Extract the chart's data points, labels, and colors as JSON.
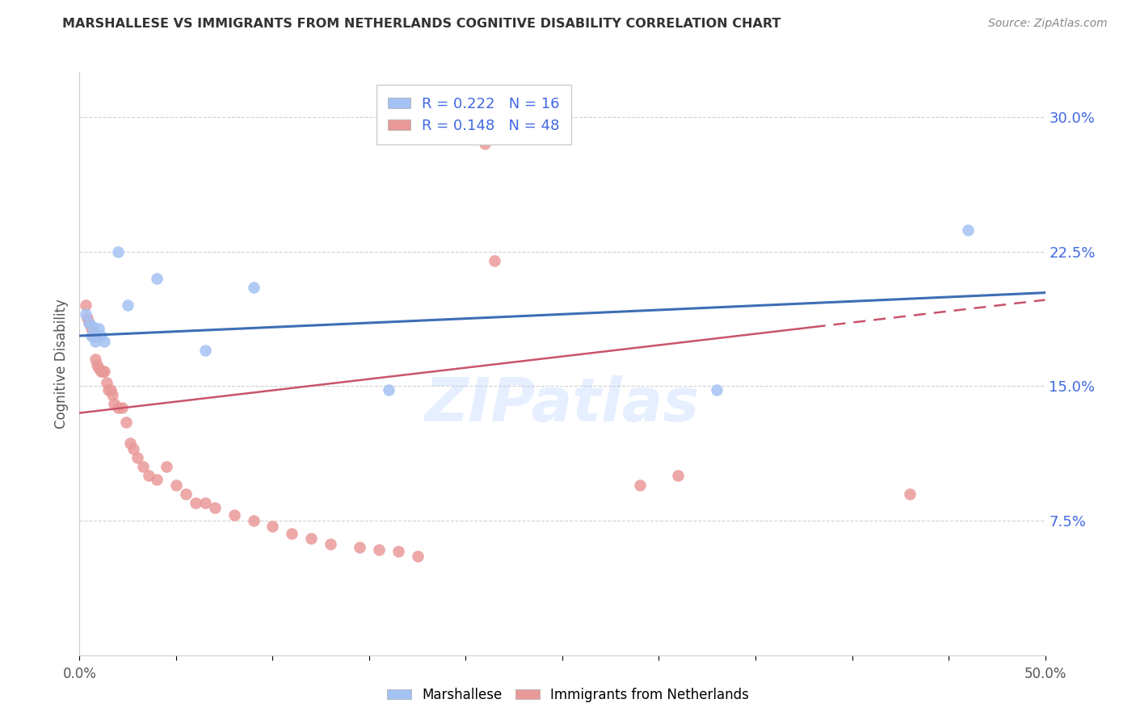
{
  "title": "MARSHALLESE VS IMMIGRANTS FROM NETHERLANDS COGNITIVE DISABILITY CORRELATION CHART",
  "source": "Source: ZipAtlas.com",
  "ylabel": "Cognitive Disability",
  "xlim": [
    0.0,
    0.5
  ],
  "ylim": [
    0.0,
    0.325
  ],
  "yticks": [
    0.075,
    0.15,
    0.225,
    0.3
  ],
  "ytick_labels": [
    "7.5%",
    "15.0%",
    "22.5%",
    "30.0%"
  ],
  "xticks": [
    0.0,
    0.05,
    0.1,
    0.15,
    0.2,
    0.25,
    0.3,
    0.35,
    0.4,
    0.45,
    0.5
  ],
  "xtick_labels": [
    "0.0%",
    "",
    "",
    "",
    "",
    "",
    "",
    "",
    "",
    "",
    "50.0%"
  ],
  "blue_color": "#a4c2f4",
  "pink_color": "#ea9999",
  "blue_line_color": "#3d6eb5",
  "pink_line_color": "#c9546c",
  "legend_R1": "R = 0.222",
  "legend_N1": "N = 16",
  "legend_R2": "R = 0.148",
  "legend_N2": "N = 48",
  "marshallese_x": [
    0.003,
    0.005,
    0.006,
    0.007,
    0.008,
    0.01,
    0.011,
    0.013,
    0.02,
    0.025,
    0.04,
    0.065,
    0.09,
    0.16,
    0.33,
    0.46
  ],
  "marshallese_y": [
    0.19,
    0.185,
    0.178,
    0.183,
    0.175,
    0.182,
    0.178,
    0.175,
    0.225,
    0.195,
    0.21,
    0.17,
    0.205,
    0.148,
    0.148,
    0.237
  ],
  "netherlands_x": [
    0.003,
    0.004,
    0.005,
    0.006,
    0.007,
    0.008,
    0.008,
    0.009,
    0.01,
    0.011,
    0.012,
    0.013,
    0.014,
    0.015,
    0.016,
    0.017,
    0.018,
    0.02,
    0.022,
    0.024,
    0.026,
    0.028,
    0.03,
    0.033,
    0.036,
    0.04,
    0.045,
    0.05,
    0.055,
    0.06,
    0.065,
    0.07,
    0.08,
    0.09,
    0.1,
    0.11,
    0.12,
    0.13,
    0.145,
    0.155,
    0.165,
    0.175,
    0.19,
    0.21,
    0.215,
    0.29,
    0.31,
    0.43
  ],
  "netherlands_y": [
    0.195,
    0.188,
    0.185,
    0.182,
    0.178,
    0.178,
    0.165,
    0.162,
    0.16,
    0.158,
    0.158,
    0.158,
    0.152,
    0.148,
    0.148,
    0.145,
    0.14,
    0.138,
    0.138,
    0.13,
    0.118,
    0.115,
    0.11,
    0.105,
    0.1,
    0.098,
    0.105,
    0.095,
    0.09,
    0.085,
    0.085,
    0.082,
    0.078,
    0.075,
    0.072,
    0.068,
    0.065,
    0.062,
    0.06,
    0.059,
    0.058,
    0.055,
    0.29,
    0.285,
    0.22,
    0.095,
    0.1,
    0.09
  ],
  "blue_line_x0": 0.0,
  "blue_line_y0": 0.178,
  "blue_line_x1": 0.5,
  "blue_line_y1": 0.202,
  "pink_line_x0": 0.0,
  "pink_line_y0": 0.135,
  "pink_line_x1": 0.5,
  "pink_line_y1": 0.198,
  "watermark": "ZIPatlas",
  "background_color": "#ffffff",
  "grid_color": "#d0d0d0"
}
